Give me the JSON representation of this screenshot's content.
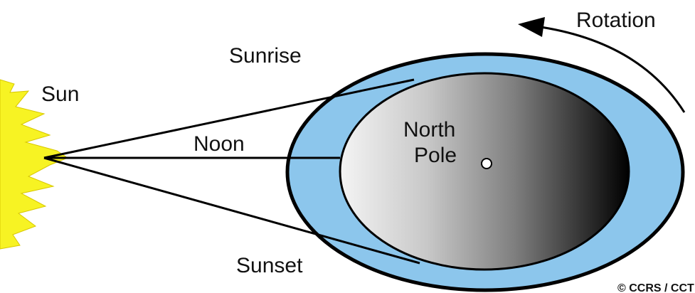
{
  "labels": {
    "rotation": "Rotation",
    "sunrise": "Sunrise",
    "sun": "Sun",
    "noon": "Noon",
    "north_pole": [
      "North",
      "Pole"
    ],
    "sunset": "Sunset",
    "credit": "© CCRS / CCT"
  }
}
